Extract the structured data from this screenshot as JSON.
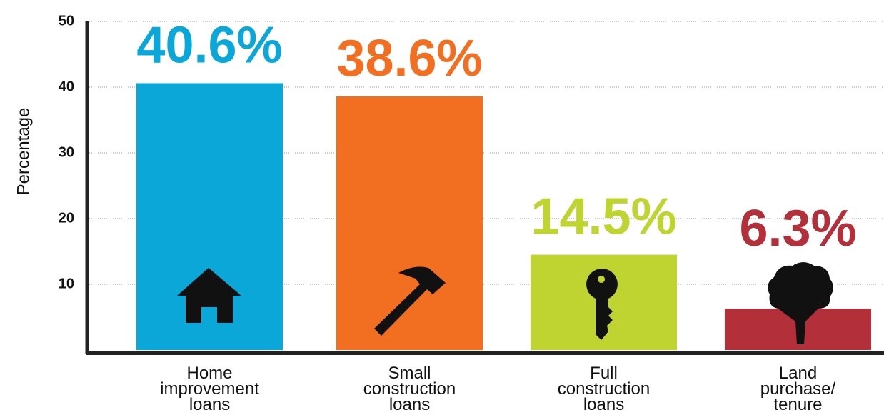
{
  "chart_data": {
    "type": "bar",
    "y_label": "Percentage",
    "categories": [
      "Home\nimprovement\nloans",
      "Small\nconstruction\nloans",
      "Full\nconstruction\nloans",
      "Land\npurchase/\ntenure"
    ],
    "values": [
      40.6,
      38.6,
      14.5,
      6.3
    ],
    "value_labels": [
      "40.6%",
      "38.6%",
      "14.5%",
      "6.3%"
    ],
    "colors": [
      "#0ba7d8",
      "#f26f21",
      "#bfd331",
      "#b3303a"
    ],
    "ylim": [
      0,
      50
    ],
    "yticks": [
      10,
      20,
      30,
      40,
      50
    ],
    "grid": true
  }
}
